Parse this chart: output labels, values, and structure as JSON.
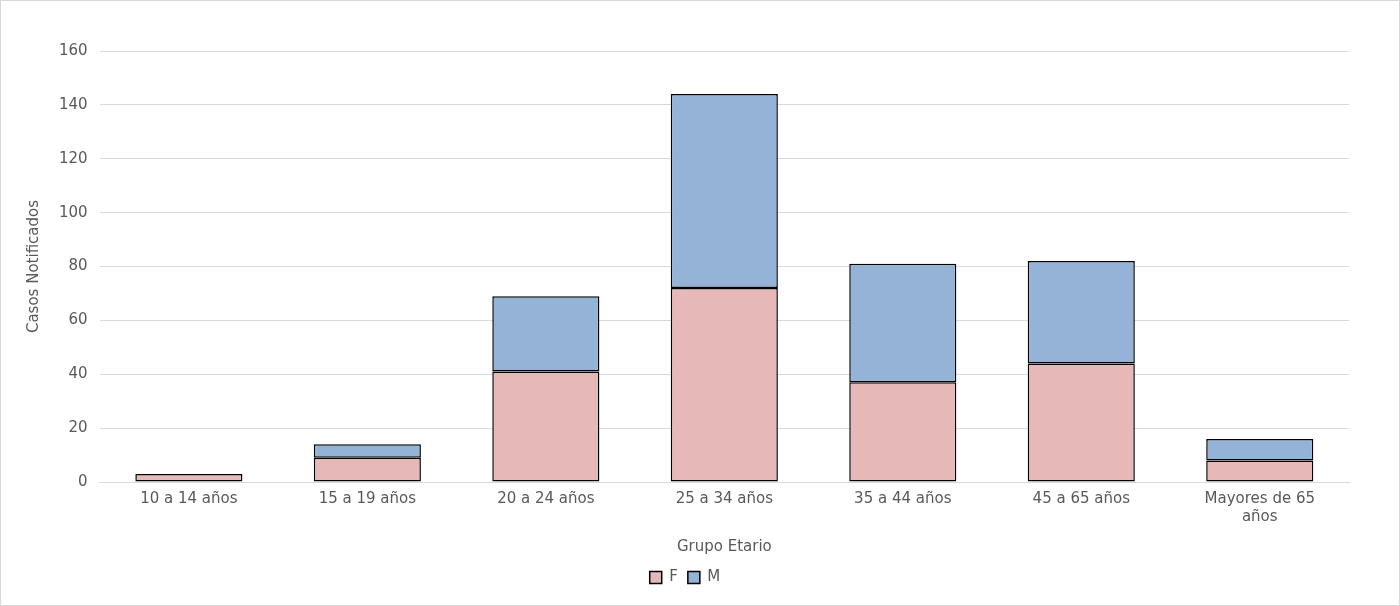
{
  "chart_data": {
    "type": "bar",
    "stacked": true,
    "xlabel": "Grupo Etario",
    "ylabel": "Casos Notificados",
    "categories": [
      "10 a 14 años",
      "15 a 19 años",
      "20 a 24 años",
      "25 a 34 años",
      "35 a 44 años",
      "45 a 65 años",
      "Mayores de 65 años"
    ],
    "series": [
      {
        "name": "F",
        "color": "#e6b8b7",
        "values": [
          3,
          9,
          41,
          72,
          37,
          44,
          8
        ]
      },
      {
        "name": "M",
        "color": "#95b3d7",
        "values": [
          0,
          5,
          28,
          72,
          44,
          38,
          8
        ]
      }
    ],
    "ylim": [
      0,
      160
    ],
    "yticks": [
      0,
      20,
      40,
      60,
      80,
      100,
      120,
      140,
      160
    ],
    "grid": "y",
    "legend": "bottom"
  }
}
